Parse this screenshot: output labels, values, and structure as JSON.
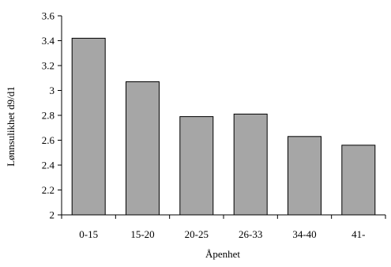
{
  "chart_data": {
    "type": "bar",
    "xlabel": "Åpenhet",
    "ylabel": "Lønnsulikhet d9/d1",
    "categories": [
      "0-15",
      "15-20",
      "20-25",
      "26-33",
      "34-40",
      "41-"
    ],
    "values": [
      3.42,
      3.07,
      2.79,
      2.81,
      2.63,
      2.56
    ],
    "ylim": [
      2,
      3.6
    ],
    "yticks": [
      "2",
      "2.2",
      "2.4",
      "2.6",
      "2.8",
      "3",
      "3.2",
      "3.4",
      "3.6"
    ],
    "grid": false,
    "legend": "none",
    "bar_color": "#a6a6a6",
    "bar_edge_color": "#000000"
  }
}
